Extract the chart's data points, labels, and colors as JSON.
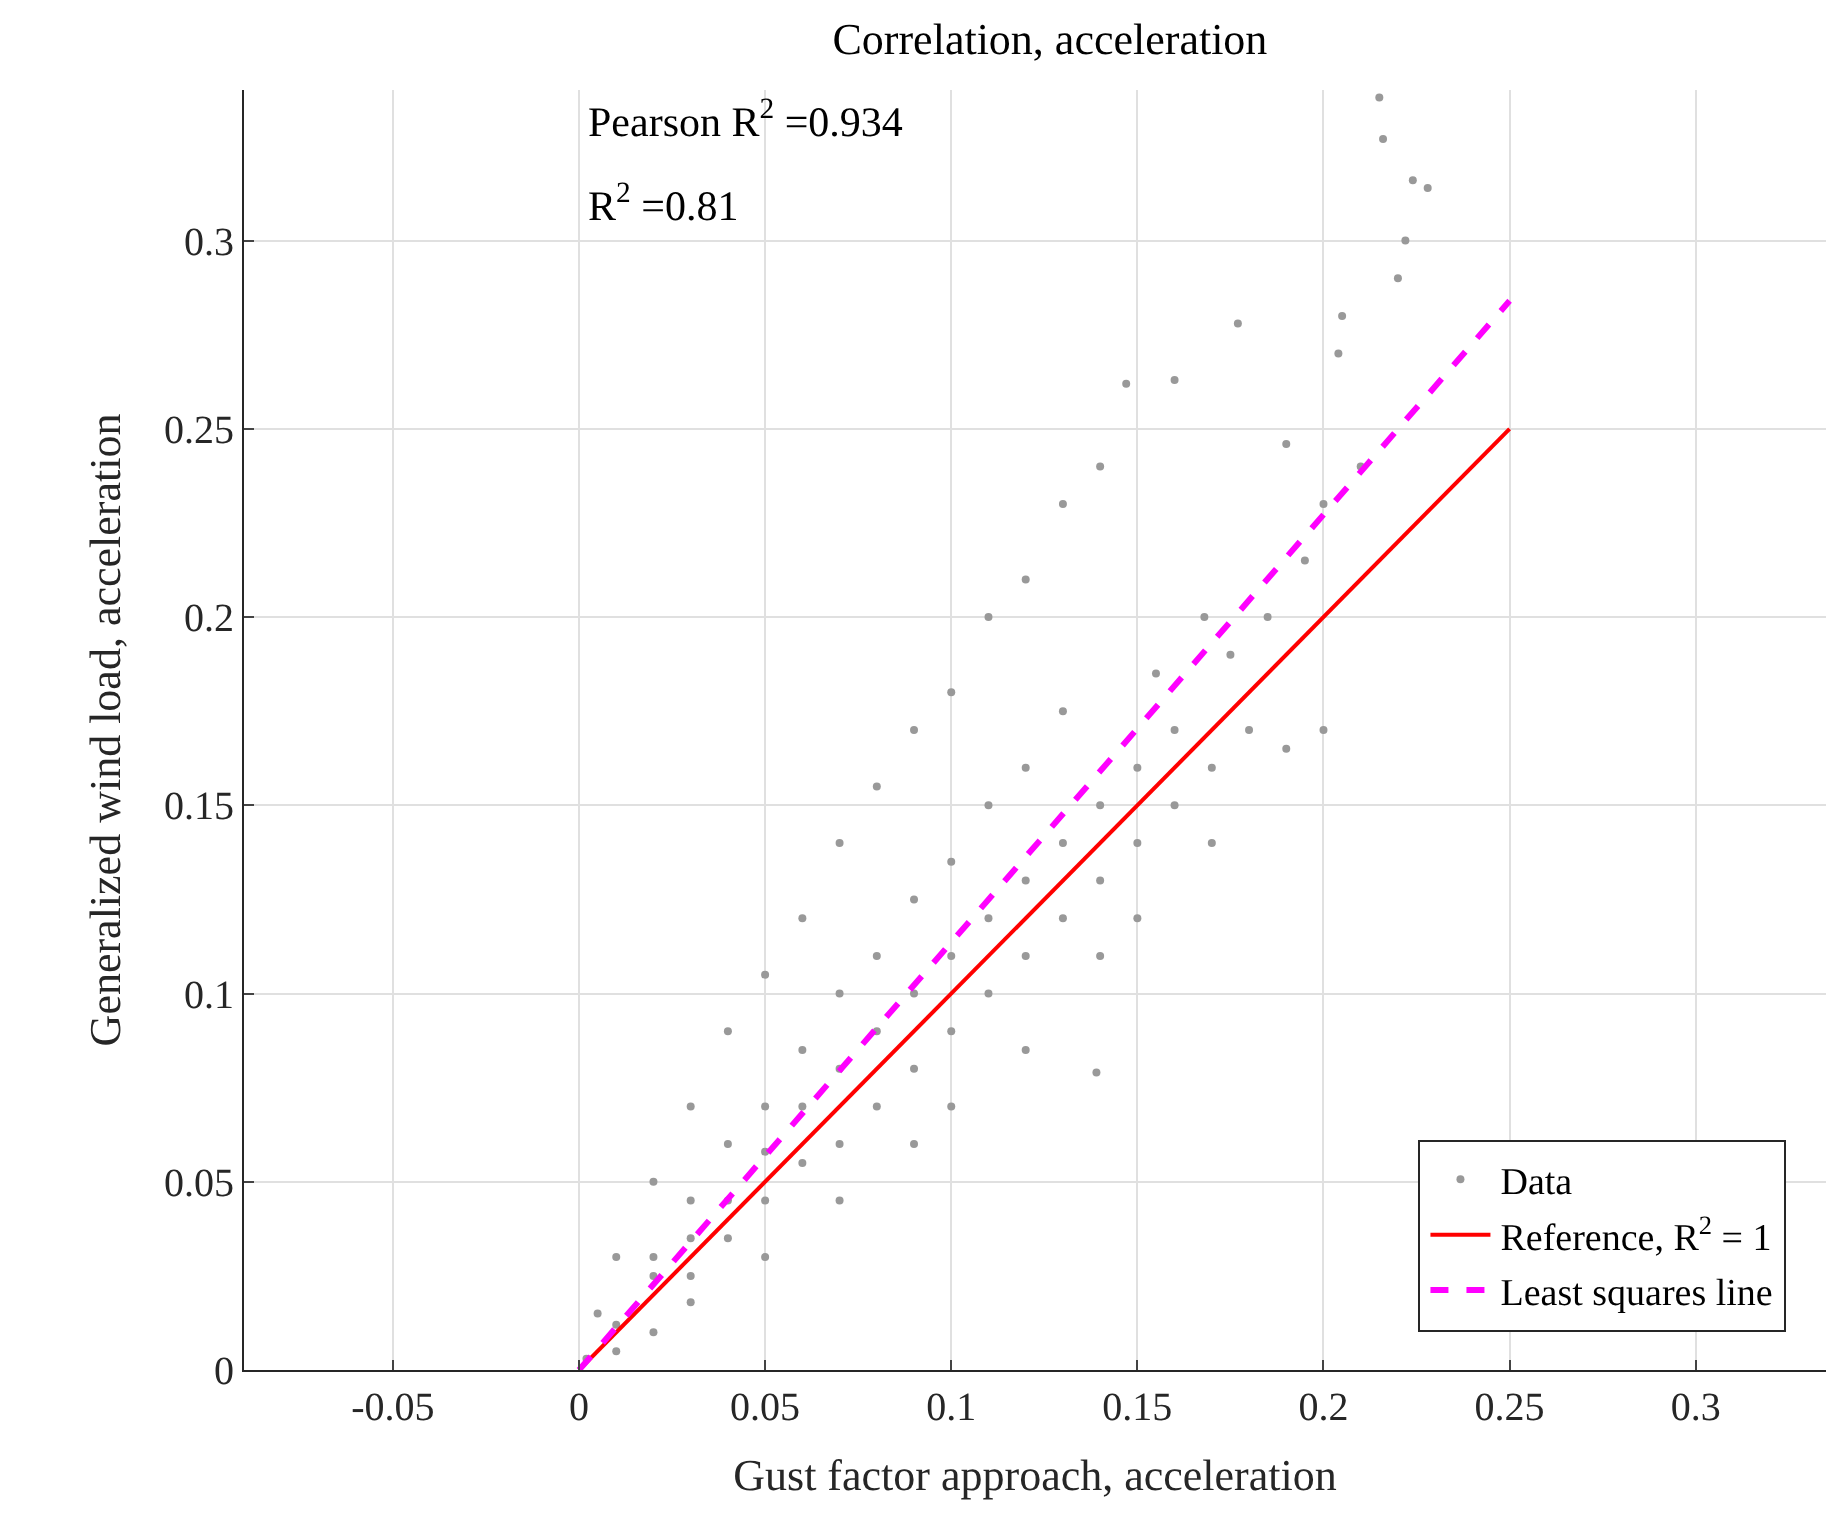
{
  "chart_data": {
    "type": "scatter",
    "title": "Correlation, acceleration",
    "xlabel": "Gust factor approach, acceleration",
    "ylabel": "Generalized wind load, acceleration",
    "annotations": [
      "Pearson R$^{2}$ =0.934",
      "R$^{2}$ =0.81"
    ],
    "xlim": [
      -0.09,
      0.335
    ],
    "xticks": [
      -0.05,
      0,
      0.05,
      0.1,
      0.15,
      0.2,
      0.25,
      0.3
    ],
    "ylim": [
      0,
      0.34
    ],
    "yticks": [
      0,
      0.05,
      0.1,
      0.15,
      0.2,
      0.25,
      0.3
    ],
    "grid": true,
    "legend": "bottom right",
    "series": [
      {
        "name": "Data",
        "marker": "circle",
        "color": "#999999",
        "x": [
          0.002,
          0.005,
          0.01,
          0.02,
          0.03,
          0.04,
          0.05,
          0.06,
          0.07,
          0.08,
          0.09,
          0.1,
          0.11,
          0.12,
          0.13,
          0.14,
          0.01,
          0.02,
          0.03,
          0.05,
          0.07,
          0.09,
          0.1,
          0.12,
          0.14,
          0.15,
          0.17,
          0.19,
          0.2,
          0.01,
          0.02,
          0.03,
          0.04,
          0.05,
          0.06,
          0.07,
          0.08,
          0.09,
          0.1,
          0.11,
          0.12,
          0.13,
          0.14,
          0.15,
          0.16,
          0.02,
          0.03,
          0.04,
          0.05,
          0.06,
          0.07,
          0.08,
          0.09,
          0.1,
          0.11,
          0.12,
          0.13,
          0.03,
          0.04,
          0.05,
          0.06,
          0.07,
          0.08,
          0.09,
          0.1,
          0.11,
          0.12,
          0.13,
          0.14,
          0.15,
          0.16,
          0.17,
          0.18,
          0.215,
          0.216,
          0.224,
          0.228,
          0.222,
          0.205,
          0.22,
          0.177,
          0.16,
          0.147,
          0.204,
          0.19,
          0.2,
          0.21,
          0.139,
          0.185,
          0.195,
          0.175,
          0.168,
          0.155
        ],
        "values": [
          0.003,
          0.015,
          0.03,
          0.05,
          0.07,
          0.09,
          0.105,
          0.12,
          0.14,
          0.155,
          0.17,
          0.18,
          0.2,
          0.21,
          0.23,
          0.24,
          0.005,
          0.01,
          0.018,
          0.03,
          0.045,
          0.06,
          0.07,
          0.085,
          0.11,
          0.12,
          0.14,
          0.165,
          0.17,
          0.012,
          0.025,
          0.035,
          0.045,
          0.058,
          0.07,
          0.08,
          0.09,
          0.1,
          0.11,
          0.12,
          0.13,
          0.14,
          0.15,
          0.16,
          0.17,
          0.03,
          0.045,
          0.06,
          0.07,
          0.085,
          0.1,
          0.11,
          0.125,
          0.135,
          0.15,
          0.16,
          0.175,
          0.025,
          0.035,
          0.045,
          0.055,
          0.06,
          0.07,
          0.08,
          0.09,
          0.1,
          0.11,
          0.12,
          0.13,
          0.14,
          0.15,
          0.16,
          0.17,
          0.338,
          0.327,
          0.316,
          0.314,
          0.3,
          0.28,
          0.29,
          0.278,
          0.263,
          0.262,
          0.27,
          0.246,
          0.23,
          0.24,
          0.079,
          0.2,
          0.215,
          0.19,
          0.2,
          0.185
        ]
      },
      {
        "name": "Reference, R$^{2}$ = 1",
        "type": "line",
        "color": "#ff0000",
        "line_style": "solid",
        "x": [
          0,
          0.25
        ],
        "values": [
          0,
          0.25
        ]
      },
      {
        "name": "Least squares line",
        "type": "line",
        "color": "#ff00ff",
        "line_style": "dashed",
        "x": [
          0,
          0.25
        ],
        "values": [
          0,
          0.284
        ]
      }
    ]
  }
}
